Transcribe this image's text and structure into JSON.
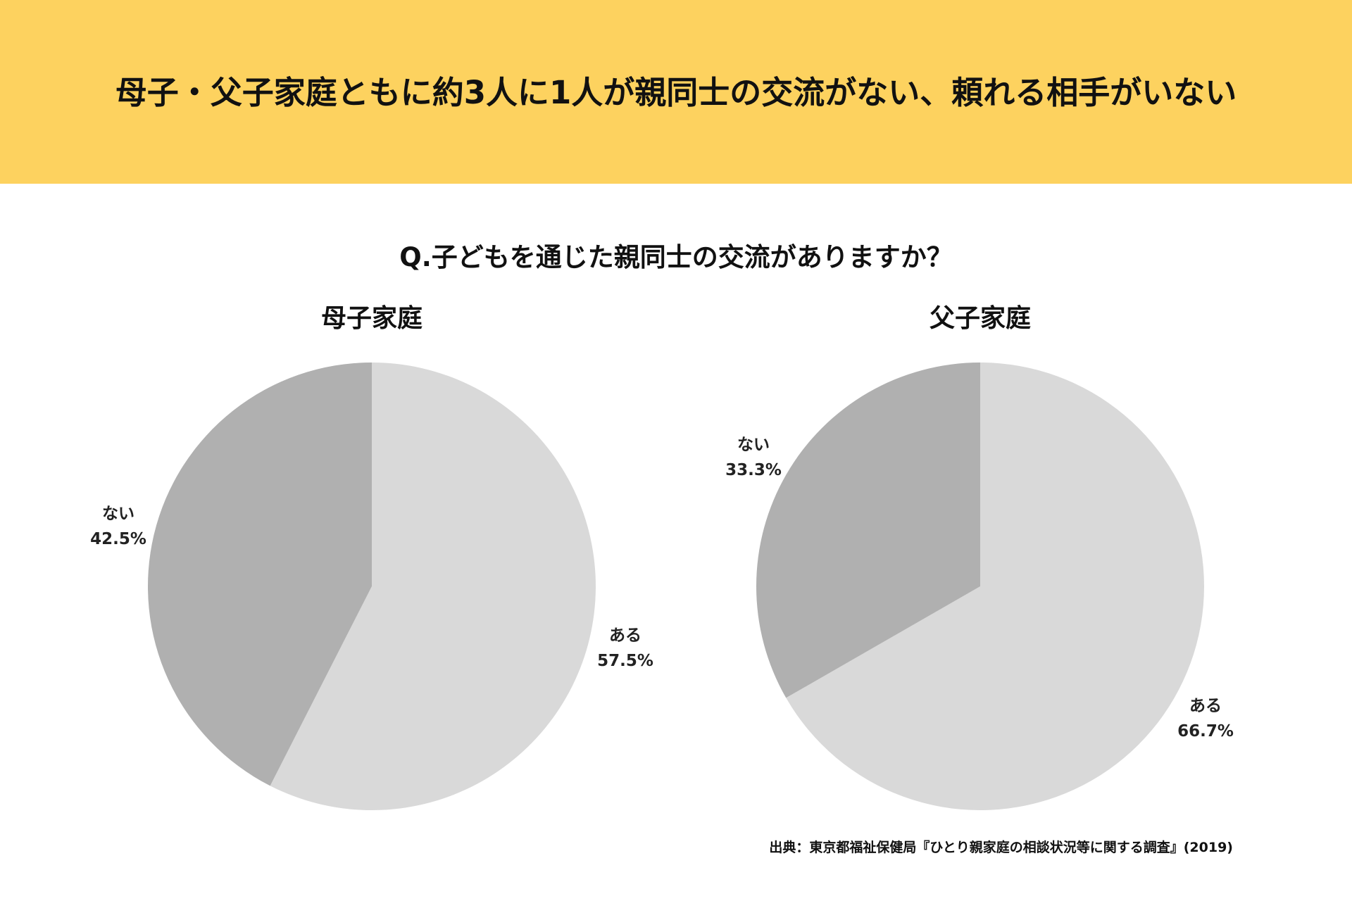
{
  "header": {
    "title": "母子・父子家庭ともに約3人に1人が親同士の交流がない、頼れる相手がいない"
  },
  "question": "Q.子どもを通じた親同士の交流がありますか？",
  "colors": {
    "header_bg": "#fdd25f",
    "slice_aru": "#d9d9d9",
    "slice_nai": "#b0b0b0"
  },
  "chart_data": [
    {
      "type": "pie",
      "title": "母子家庭",
      "slices": [
        {
          "label": "ある",
          "value": 57.5,
          "display": "57.5%"
        },
        {
          "label": "ない",
          "value": 42.5,
          "display": "42.5%"
        }
      ]
    },
    {
      "type": "pie",
      "title": "父子家庭",
      "slices": [
        {
          "label": "ある",
          "value": 66.7,
          "display": "66.7%"
        },
        {
          "label": "ない",
          "value": 33.3,
          "display": "33.3%"
        }
      ]
    }
  ],
  "source": "出典：東京都福祉保健局『ひとり親家庭の相談状況等に関する調査』(2019)"
}
